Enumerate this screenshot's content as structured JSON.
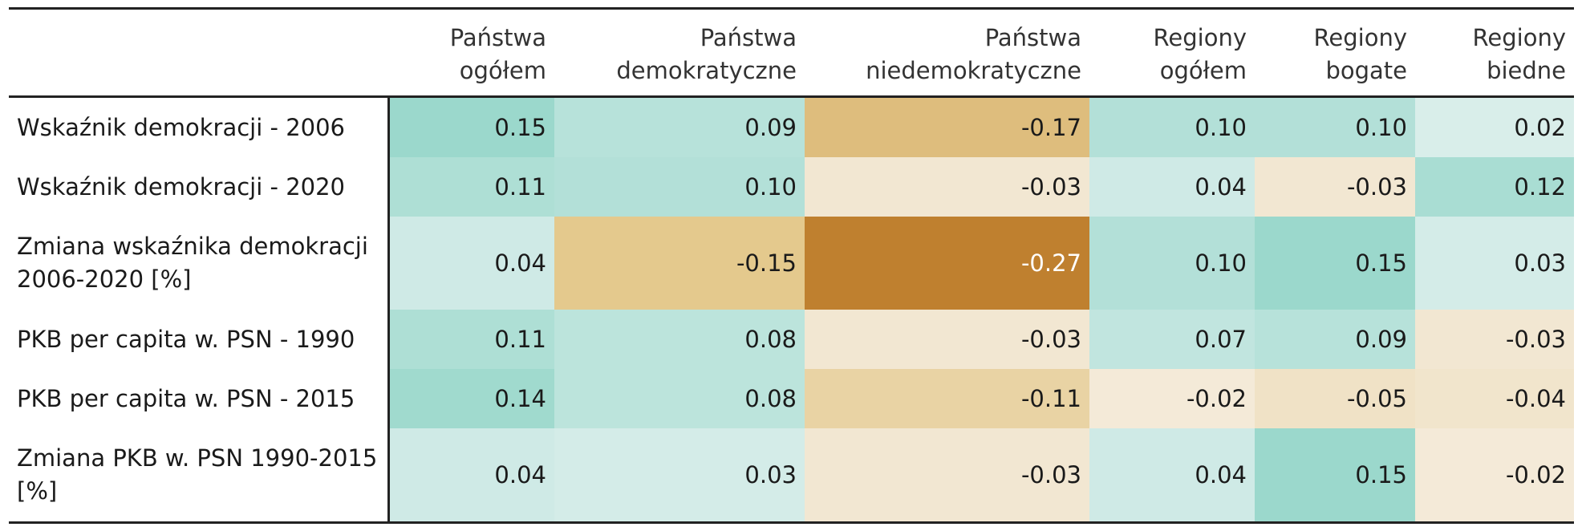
{
  "table": {
    "columns": [
      "",
      "Państwa ogółem",
      "Państwa demokratyczne",
      "Państwa niedemokratyczne",
      "Regiony ogółem",
      "Regiony bogate",
      "Regiony biedne"
    ],
    "rows": [
      {
        "label": "Wskaźnik demokracji - 2006",
        "values": [
          "0.15",
          "0.09",
          "-0.17",
          "0.10",
          "0.10",
          "0.02"
        ]
      },
      {
        "label": "Wskaźnik demokracji - 2020",
        "values": [
          "0.11",
          "0.10",
          "-0.03",
          "0.04",
          "-0.03",
          "0.12"
        ]
      },
      {
        "label": "Zmiana wskaźnika demokracji 2006-2020 [%]",
        "values": [
          "0.04",
          "-0.15",
          "-0.27",
          "0.10",
          "0.15",
          "0.03"
        ]
      },
      {
        "label": "PKB per capita w. PSN - 1990",
        "values": [
          "0.11",
          "0.08",
          "-0.03",
          "0.07",
          "0.09",
          "-0.03"
        ]
      },
      {
        "label": "PKB per capita w. PSN - 2015",
        "values": [
          "0.14",
          "0.08",
          "-0.11",
          "-0.02",
          "-0.05",
          "-0.04"
        ]
      },
      {
        "label": "Zmiana PKB w. PSN 1990-2015 [%]",
        "values": [
          "0.04",
          "0.03",
          "-0.03",
          "0.04",
          "0.15",
          "-0.02"
        ]
      }
    ]
  },
  "colors": {
    "pos_strong": "#9bd8cc",
    "pos_light": "#e2f1ef",
    "neg_light": "#f6efe3",
    "neg_mid": "#e4c98d",
    "neg_strong": "#bf802f"
  }
}
